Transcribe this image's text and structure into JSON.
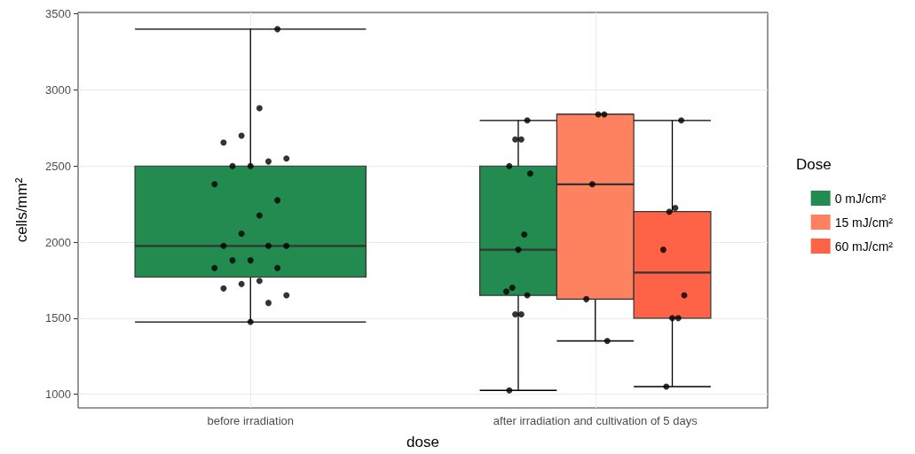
{
  "chart_data": {
    "type": "box",
    "xlabel": "dose",
    "ylabel": "cells/mm²",
    "legend_title": "Dose",
    "categories": [
      "before irradiation",
      "after irradiation and cultivation of 5 days"
    ],
    "ylim": [
      910,
      3510
    ],
    "yticks": [
      1000,
      1500,
      2000,
      2500,
      3000,
      3500
    ],
    "grid": true,
    "legend": "right",
    "marker": "circle",
    "series": [
      {
        "name": "0 mJ/cm²",
        "color": "#238b50",
        "boxes": [
          {
            "low": 1475,
            "q1": 1770,
            "median": 1975,
            "q3": 2500,
            "high": 3400
          },
          {
            "low": 1025,
            "q1": 1650,
            "median": 1950,
            "q3": 2500,
            "high": 2800
          }
        ]
      },
      {
        "name": "15 mJ/cm²",
        "color": "#fe8160",
        "boxes": [
          null,
          {
            "low": 1350,
            "q1": 1625,
            "median": 2380,
            "q3": 2840,
            "high": 2840
          }
        ]
      },
      {
        "name": "60 mJ/cm²",
        "color": "#ff6347",
        "boxes": [
          null,
          {
            "low": 1050,
            "q1": 1500,
            "median": 1800,
            "q3": 2200,
            "high": 2800
          }
        ]
      },
      {
        "type": "scatter",
        "color": "#000000",
        "x": [
          "before irradiation",
          "before irradiation",
          "before irradiation",
          "before irradiation",
          "before irradiation",
          "before irradiation",
          "before irradiation",
          "before irradiation",
          "before irradiation",
          "before irradiation",
          "before irradiation",
          "before irradiation",
          "before irradiation",
          "before irradiation",
          "before irradiation",
          "before irradiation",
          "before irradiation",
          "before irradiation",
          "before irradiation",
          "before irradiation",
          "before irradiation",
          "before irradiation",
          "before irradiation",
          "before irradiation",
          "before irradiation",
          "after irradiation and cultivation of 5 days",
          "after irradiation and cultivation of 5 days",
          "after irradiation and cultivation of 5 days",
          "after irradiation and cultivation of 5 days",
          "after irradiation and cultivation of 5 days",
          "after irradiation and cultivation of 5 days",
          "after irradiation and cultivation of 5 days",
          "after irradiation and cultivation of 5 days",
          "after irradiation and cultivation of 5 days",
          "after irradiation and cultivation of 5 days",
          "after irradiation and cultivation of 5 days",
          "after irradiation and cultivation of 5 days",
          "after irradiation and cultivation of 5 days"
        ],
        "values": [
          3400,
          2880,
          2700,
          2655,
          2550,
          2530,
          2500,
          2500,
          2380,
          2275,
          2175,
          2055,
          1975,
          1975,
          1975,
          1880,
          1880,
          1830,
          1830,
          1745,
          1725,
          1695,
          1650,
          1600,
          1475,
          2800,
          2675,
          2675,
          2500,
          2450,
          2050,
          1950,
          1700,
          1675,
          1650,
          1525,
          1525,
          1025
        ]
      },
      {
        "type": "scatter",
        "color": "#000000",
        "x": [
          "after irradiation and cultivation of 5 days",
          "after irradiation and cultivation of 5 days",
          "after irradiation and cultivation of 5 days",
          "after irradiation and cultivation of 5 days",
          "after irradiation and cultivation of 5 days"
        ],
        "values": [
          2840,
          2840,
          2380,
          1625,
          1350
        ]
      },
      {
        "type": "scatter",
        "color": "#000000",
        "x": [
          "after irradiation and cultivation of 5 days",
          "after irradiation and cultivation of 5 days",
          "after irradiation and cultivation of 5 days",
          "after irradiation and cultivation of 5 days",
          "after irradiation and cultivation of 5 days",
          "after irradiation and cultivation of 5 days",
          "after irradiation and cultivation of 5 days",
          "after irradiation and cultivation of 5 days"
        ],
        "values": [
          2800,
          2225,
          2200,
          1950,
          1650,
          1500,
          1500,
          1050
        ]
      }
    ]
  }
}
